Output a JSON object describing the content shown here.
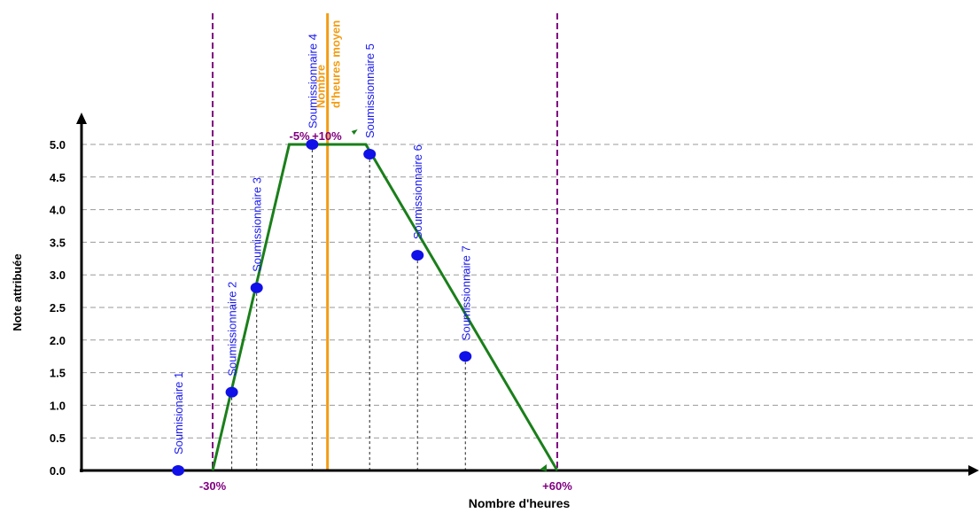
{
  "chart_data": {
    "type": "line",
    "title": "",
    "xlabel": "Nombre d'heures",
    "ylabel": "Note attribuée",
    "ylim": [
      0,
      5.0
    ],
    "yticks": [
      "0.0",
      "0.5",
      "1.0",
      "1.5",
      "2.0",
      "2.5",
      "3.0",
      "3.5",
      "4.0",
      "4.5",
      "5.0"
    ],
    "grid": true,
    "x_unit": "% deviation from average hours",
    "xlim": [
      -35,
      62
    ],
    "series": [
      {
        "x": [
          -30,
          -10,
          -5,
          10,
          60
        ],
        "y": [
          0,
          5,
          5,
          5,
          0
        ],
        "color": "#1a7f1a"
      }
    ],
    "reference_lines": [
      {
        "x": -30,
        "label": "-30%",
        "color": "#800080"
      },
      {
        "x": 60,
        "label": "+60%",
        "color": "#800080"
      },
      {
        "x": 0,
        "label": "Nombre d'heures moyen",
        "color": "#f39c12"
      }
    ],
    "breakpoint_labels": [
      {
        "x": -5,
        "label": "-5%",
        "color": "#800080"
      },
      {
        "x": 10,
        "label": "+10%",
        "color": "#800080"
      }
    ],
    "points": [
      {
        "name": "Soumisionaire 1",
        "x": -39,
        "y": 0.0
      },
      {
        "name": "Soumissionnaire 2",
        "x": -25,
        "y": 1.2
      },
      {
        "name": "Soumissionnaire 3",
        "x": -18.5,
        "y": 2.8
      },
      {
        "name": "Soumissionnaire 4",
        "x": -4,
        "y": 5.0
      },
      {
        "name": "Soumissionnaire 5",
        "x": 11,
        "y": 4.85
      },
      {
        "name": "Soumissionnaire 6",
        "x": 23.5,
        "y": 3.3
      },
      {
        "name": "Soumissionnaire 7",
        "x": 36,
        "y": 1.75
      }
    ],
    "avg_label_lines": [
      "Nombre",
      "d'heures moyen"
    ]
  }
}
